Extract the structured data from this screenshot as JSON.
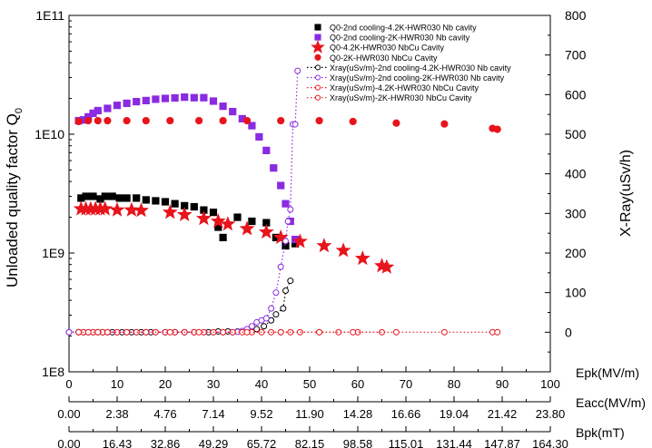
{
  "chart_data": {
    "type": "scatter",
    "ylabel_left": "Unloaded quality factor Q",
    "ylabel_left_subscript": "0",
    "ylabel_right": "X-Ray(uSv/h)",
    "y_left_scale": "log",
    "y_left_range": [
      100000000.0,
      100000000000.0
    ],
    "y_left_ticks": [
      "1E8",
      "1E9",
      "1E10",
      "1E11"
    ],
    "y_right_range": [
      -100,
      800
    ],
    "y_right_ticks": [
      0,
      100,
      200,
      300,
      400,
      500,
      600,
      700,
      800
    ],
    "x_axes": [
      {
        "label": "Epk(MV/m)",
        "range": [
          0,
          100
        ],
        "ticks": [
          "0",
          "10",
          "20",
          "30",
          "40",
          "50",
          "60",
          "70",
          "80",
          "90",
          "100"
        ]
      },
      {
        "label": "Eacc(MV/m)",
        "range": [
          0,
          23.8
        ],
        "ticks": [
          "0.00",
          "2.38",
          "4.76",
          "7.14",
          "9.52",
          "11.90",
          "14.28",
          "16.66",
          "19.04",
          "21.42",
          "23.80"
        ]
      },
      {
        "label": "Bpk(mT)",
        "range": [
          0,
          164.3
        ],
        "ticks": [
          "0.00",
          "16.43",
          "32.86",
          "49.29",
          "65.72",
          "82.15",
          "98.58",
          "115.01",
          "131.44",
          "147.87",
          "164.30"
        ]
      }
    ],
    "grid": false,
    "legend_position": "top-right",
    "series": [
      {
        "name": "Q0-2nd cooling-4.2K-HWR030 Nb cavity",
        "axis": "left",
        "marker": "square",
        "color": "#000000",
        "filled": true,
        "points": [
          [
            2.5,
            2900000000.0
          ],
          [
            3.5,
            3000000000.0
          ],
          [
            5,
            3000000000.0
          ],
          [
            6.5,
            2850000000.0
          ],
          [
            7.5,
            3000000000.0
          ],
          [
            9,
            3000000000.0
          ],
          [
            10.5,
            2900000000.0
          ],
          [
            12,
            2900000000.0
          ],
          [
            14,
            2900000000.0
          ],
          [
            16,
            2800000000.0
          ],
          [
            18,
            2750000000.0
          ],
          [
            20,
            2700000000.0
          ],
          [
            22,
            2600000000.0
          ],
          [
            24,
            2500000000.0
          ],
          [
            26,
            2450000000.0
          ],
          [
            28,
            2300000000.0
          ],
          [
            30,
            2200000000.0
          ],
          [
            31,
            1650000000.0
          ],
          [
            32,
            1350000000.0
          ],
          [
            35,
            2000000000.0
          ],
          [
            38,
            1850000000.0
          ],
          [
            41,
            1800000000.0
          ],
          [
            43,
            1350000000.0
          ],
          [
            45,
            1150000000.0
          ],
          [
            47,
            1200000000.0
          ]
        ]
      },
      {
        "name": "Q0-2nd cooling-2K-HWR030 Nb cavity",
        "axis": "left",
        "marker": "square",
        "color": "#8a2be2",
        "filled": true,
        "points": [
          [
            2,
            13000000000.0
          ],
          [
            3,
            13200000000.0
          ],
          [
            4,
            14000000000.0
          ],
          [
            5,
            15000000000.0
          ],
          [
            6,
            15800000000.0
          ],
          [
            8,
            16500000000.0
          ],
          [
            10,
            17500000000.0
          ],
          [
            12,
            18200000000.0
          ],
          [
            14,
            18800000000.0
          ],
          [
            16,
            19200000000.0
          ],
          [
            18,
            19700000000.0
          ],
          [
            20,
            20000000000.0
          ],
          [
            22,
            20200000000.0
          ],
          [
            24,
            20500000000.0
          ],
          [
            26,
            20300000000.0
          ],
          [
            28,
            20300000000.0
          ],
          [
            30,
            19000000000.0
          ],
          [
            32,
            17200000000.0
          ],
          [
            34,
            15500000000.0
          ],
          [
            36,
            13500000000.0
          ],
          [
            38,
            11800000000.0
          ],
          [
            39.5,
            9500000000.0
          ],
          [
            41,
            7300000000.0
          ],
          [
            42.5,
            5200000000.0
          ],
          [
            44,
            3700000000.0
          ],
          [
            45,
            2600000000.0
          ],
          [
            46,
            1850000000.0
          ],
          [
            47,
            1300000000.0
          ]
        ]
      },
      {
        "name": "Q0-4.2K-HWR030 NbCu Cavity",
        "axis": "left",
        "marker": "star",
        "color": "#e8141c",
        "filled": true,
        "points": [
          [
            2.5,
            2350000000.0
          ],
          [
            3.5,
            2350000000.0
          ],
          [
            4.5,
            2350000000.0
          ],
          [
            5.5,
            2350000000.0
          ],
          [
            6.5,
            2350000000.0
          ],
          [
            7.5,
            2350000000.0
          ],
          [
            10,
            2300000000.0
          ],
          [
            13,
            2300000000.0
          ],
          [
            15,
            2280000000.0
          ],
          [
            21,
            2200000000.0
          ],
          [
            24,
            2100000000.0
          ],
          [
            28,
            1950000000.0
          ],
          [
            31,
            1850000000.0
          ],
          [
            33,
            1750000000.0
          ],
          [
            37,
            1600000000.0
          ],
          [
            41,
            1500000000.0
          ],
          [
            44,
            1350000000.0
          ],
          [
            48,
            1250000000.0
          ],
          [
            53,
            1150000000.0
          ],
          [
            57,
            1050000000.0
          ],
          [
            61,
            900000000.0
          ],
          [
            65,
            780000000.0
          ],
          [
            66,
            760000000.0
          ]
        ]
      },
      {
        "name": "Q0-2K-HWR030 NbCu Cavity",
        "axis": "left",
        "marker": "circle",
        "color": "#e8141c",
        "filled": true,
        "points": [
          [
            2,
            12800000000.0
          ],
          [
            4,
            13000000000.0
          ],
          [
            6,
            13000000000.0
          ],
          [
            8,
            13000000000.0
          ],
          [
            12,
            13000000000.0
          ],
          [
            16,
            13000000000.0
          ],
          [
            21,
            13000000000.0
          ],
          [
            27,
            13000000000.0
          ],
          [
            32,
            13000000000.0
          ],
          [
            37,
            13000000000.0
          ],
          [
            44,
            13000000000.0
          ],
          [
            52,
            13000000000.0
          ],
          [
            59,
            12800000000.0
          ],
          [
            68,
            12400000000.0
          ],
          [
            78,
            12200000000.0
          ],
          [
            88,
            11200000000.0
          ],
          [
            89,
            11000000000.0
          ]
        ]
      },
      {
        "name": "Xray(uSv/m)-2nd cooling-4.2K-HWR030 Nb cavity",
        "axis": "right",
        "marker": "circle",
        "color": "#000000",
        "filled": false,
        "line": "dotted",
        "points": [
          [
            0,
            0
          ],
          [
            2,
            0
          ],
          [
            3,
            0
          ],
          [
            5,
            0
          ],
          [
            7,
            0
          ],
          [
            9,
            0
          ],
          [
            11,
            0
          ],
          [
            13,
            0
          ],
          [
            15,
            0
          ],
          [
            17,
            0
          ],
          [
            20,
            0
          ],
          [
            22,
            0
          ],
          [
            24,
            0
          ],
          [
            26,
            0
          ],
          [
            29,
            0
          ],
          [
            31,
            2
          ],
          [
            33,
            2
          ],
          [
            35,
            2
          ],
          [
            37,
            3
          ],
          [
            39,
            8
          ],
          [
            40.5,
            15
          ],
          [
            42,
            30
          ],
          [
            43,
            45
          ],
          [
            44.5,
            60
          ],
          [
            45,
            105
          ],
          [
            46,
            130
          ]
        ]
      },
      {
        "name": "Xray(uSv/m)-2nd cooling-2K-HWR030 Nb cavity",
        "axis": "right",
        "marker": "circle",
        "color": "#8a2be2",
        "filled": false,
        "line": "dotted",
        "points": [
          [
            0,
            0
          ],
          [
            2,
            0
          ],
          [
            4,
            0
          ],
          [
            6,
            0
          ],
          [
            8,
            0
          ],
          [
            10,
            0
          ],
          [
            12,
            0
          ],
          [
            14,
            0
          ],
          [
            16,
            0
          ],
          [
            18,
            0
          ],
          [
            20,
            0
          ],
          [
            22,
            0
          ],
          [
            24,
            0
          ],
          [
            26,
            0
          ],
          [
            28,
            0
          ],
          [
            30,
            0
          ],
          [
            32,
            0
          ],
          [
            34,
            0
          ],
          [
            35,
            1
          ],
          [
            36,
            3
          ],
          [
            37,
            8
          ],
          [
            38,
            15
          ],
          [
            39,
            25
          ],
          [
            40,
            30
          ],
          [
            41,
            35
          ],
          [
            42,
            60
          ],
          [
            43,
            100
          ],
          [
            44,
            165
          ],
          [
            45,
            230
          ],
          [
            45.5,
            280
          ],
          [
            46,
            310
          ],
          [
            46.5,
            525
          ],
          [
            47,
            525
          ],
          [
            47.5,
            660
          ]
        ]
      },
      {
        "name": "Xray(uSv/m)-4.2K-HWR030 NbCu Cavity",
        "axis": "right",
        "marker": "circle",
        "color": "#e8141c",
        "filled": false,
        "line": "dotted",
        "points": [
          [
            2,
            0
          ],
          [
            3,
            0
          ],
          [
            4,
            0
          ],
          [
            5,
            0
          ],
          [
            6,
            0
          ],
          [
            7,
            0
          ],
          [
            8,
            0
          ],
          [
            10,
            0
          ],
          [
            12,
            0
          ],
          [
            14,
            0
          ],
          [
            16,
            0
          ],
          [
            18,
            0
          ],
          [
            20,
            0
          ],
          [
            22,
            0
          ],
          [
            24,
            0
          ],
          [
            26,
            0
          ],
          [
            28,
            0
          ],
          [
            30,
            0
          ],
          [
            32,
            0
          ],
          [
            34,
            0
          ],
          [
            36,
            0
          ],
          [
            38,
            0
          ],
          [
            40,
            0
          ],
          [
            42,
            0
          ],
          [
            44,
            0
          ],
          [
            46,
            0
          ],
          [
            48,
            0
          ],
          [
            52,
            0
          ],
          [
            56,
            0
          ],
          [
            60,
            0
          ],
          [
            65,
            0
          ]
        ]
      },
      {
        "name": "Xray(uSv/m)-2K-HWR030 NbCu Cavity",
        "axis": "right",
        "marker": "circle",
        "color": "#e8141c",
        "filled": false,
        "line": "dotted",
        "points": [
          [
            2,
            0
          ],
          [
            4,
            0
          ],
          [
            6,
            0
          ],
          [
            8,
            0
          ],
          [
            12,
            0
          ],
          [
            16,
            0
          ],
          [
            21,
            0
          ],
          [
            27,
            0
          ],
          [
            32,
            0
          ],
          [
            37,
            0
          ],
          [
            44,
            0
          ],
          [
            52,
            0
          ],
          [
            59,
            0
          ],
          [
            68,
            0
          ],
          [
            78,
            0
          ],
          [
            88,
            0
          ],
          [
            89,
            0
          ]
        ]
      }
    ]
  }
}
